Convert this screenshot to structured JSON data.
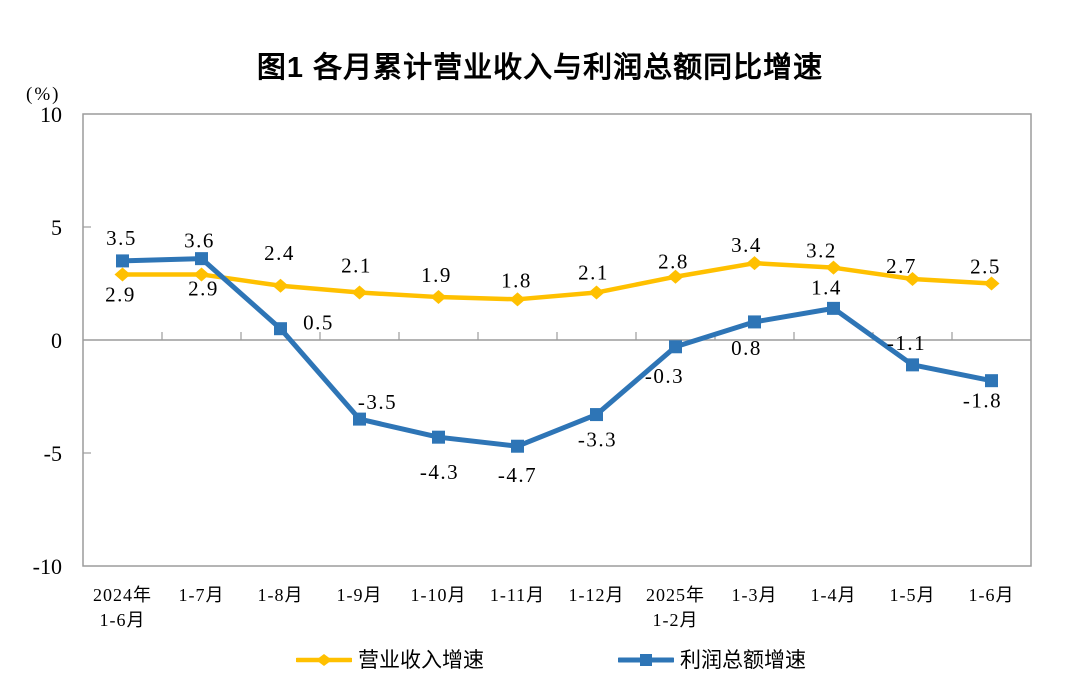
{
  "page": {
    "background": "#ffffff"
  },
  "chart_data": {
    "type": "line",
    "title": "图1 各月累计营业收入与利润总额同比增速",
    "unit_label": "(%)",
    "categories": [
      "2024年\n1-6月",
      "1-7月",
      "1-8月",
      "1-9月",
      "1-10月",
      "1-11月",
      "1-12月",
      "2025年\n1-2月",
      "1-3月",
      "1-4月",
      "1-5月",
      "1-6月"
    ],
    "series": [
      {
        "name": "营业收入增速",
        "color": "#FFC000",
        "marker": "diamond",
        "values": [
          2.9,
          2.9,
          2.4,
          2.1,
          1.9,
          1.8,
          2.1,
          2.8,
          3.4,
          3.2,
          2.7,
          2.5
        ],
        "labels": [
          "2.9",
          "2.9",
          "2.4",
          "2.1",
          "1.9",
          "1.8",
          "2.1",
          "2.8",
          "3.4",
          "3.2",
          "2.7",
          "2.5"
        ],
        "label_offsets": [
          [
            -2,
            27
          ],
          [
            2,
            21
          ],
          [
            -1,
            -26
          ],
          [
            -3,
            -20
          ],
          [
            -2,
            -15
          ],
          [
            -1,
            -12
          ],
          [
            -3,
            -13
          ],
          [
            -2,
            -8
          ],
          [
            -8,
            -11
          ],
          [
            -12,
            -10
          ],
          [
            -11,
            -6
          ],
          [
            -6,
            -10
          ]
        ]
      },
      {
        "name": "利润总额增速",
        "color": "#2E75B6",
        "marker": "square",
        "values": [
          3.5,
          3.6,
          0.5,
          -3.5,
          -4.3,
          -4.7,
          -3.3,
          -0.3,
          0.8,
          1.4,
          -1.1,
          -1.8
        ],
        "labels": [
          "3.5",
          "3.6",
          "0.5",
          "-3.5",
          "-4.3",
          "-4.7",
          "-3.3",
          "-0.3",
          "0.8",
          "1.4",
          "-1.1",
          "-1.8"
        ],
        "label_offsets": [
          [
            -1,
            -16
          ],
          [
            -2,
            -11
          ],
          [
            38,
            1
          ],
          [
            18,
            -10
          ],
          [
            1,
            42
          ],
          [
            0,
            36
          ],
          [
            1,
            32
          ],
          [
            -11,
            36
          ],
          [
            -8,
            33
          ],
          [
            -7,
            -14
          ],
          [
            -6,
            -15
          ],
          [
            -9,
            27
          ]
        ]
      }
    ],
    "y_axis": {
      "min": -10,
      "max": 10,
      "step": 5,
      "tick_labels": [
        "10",
        "5",
        "0",
        "-5",
        "-10"
      ]
    },
    "grid": "zero-line-only",
    "legend_position": "bottom",
    "axis_color": "#9c9c9c",
    "text_color": "#000000"
  }
}
